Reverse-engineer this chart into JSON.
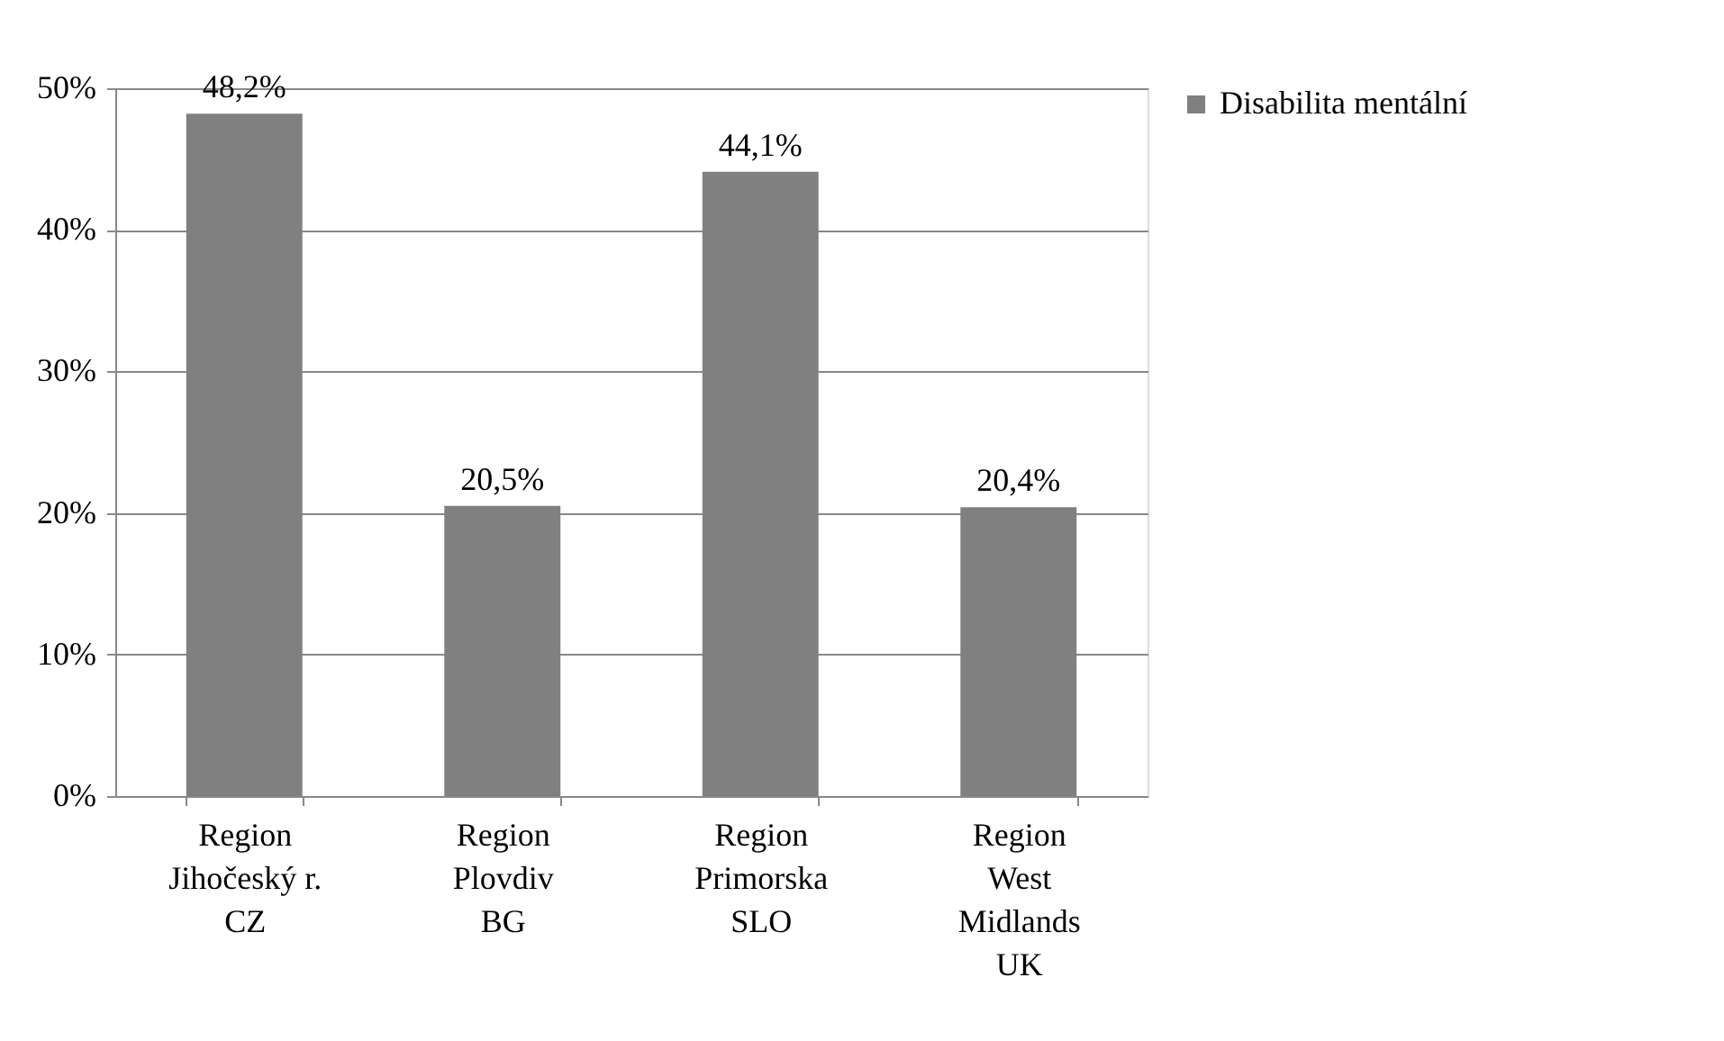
{
  "chart_data": {
    "type": "bar",
    "categories": [
      "Region\nJihočeský r.\nCZ",
      "Region\nPlovdiv\nBG",
      "Region\nPrimorska\nSLO",
      "Region\nWest\nMidlands\nUK"
    ],
    "series": [
      {
        "name": "Disabilita  mentální",
        "color": "#808080",
        "values": [
          48.2,
          20.5,
          44.1,
          20.4
        ],
        "value_labels": [
          "48,2%",
          "20,5%",
          "44,1%",
          "20,4%"
        ]
      }
    ],
    "ylim": [
      0,
      50
    ],
    "yticks": [
      {
        "value": 0,
        "label": "0%"
      },
      {
        "value": 10,
        "label": "10%"
      },
      {
        "value": 20,
        "label": "20%"
      },
      {
        "value": 30,
        "label": "30%"
      },
      {
        "value": 40,
        "label": "40%"
      },
      {
        "value": 50,
        "label": "50%"
      }
    ],
    "grid": "y",
    "legend": "right"
  }
}
